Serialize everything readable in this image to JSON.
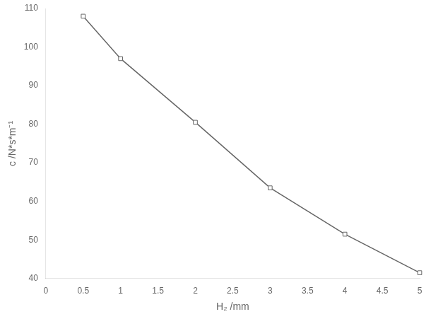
{
  "chart_data": {
    "type": "line",
    "x": [
      0.5,
      1.0,
      2.0,
      3.0,
      4.0,
      5.0
    ],
    "values": [
      108,
      97,
      80.5,
      63.5,
      51.5,
      41.5
    ],
    "xlabel": "H₂ /mm",
    "ylabel": "c /N*s*m⁻¹",
    "xlim": [
      0,
      5
    ],
    "ylim": [
      40,
      110
    ],
    "xticks": [
      0,
      0.5,
      1,
      1.5,
      2,
      2.5,
      3,
      3.5,
      4,
      4.5,
      5
    ],
    "yticks": [
      40,
      50,
      60,
      70,
      80,
      90,
      100,
      110
    ],
    "color": "#666666",
    "marker": "square",
    "grid": false
  }
}
